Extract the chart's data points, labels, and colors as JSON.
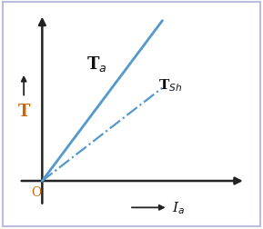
{
  "background_color": "#ffffff",
  "border_color": "#bbbbdd",
  "line_color": "#5599cc",
  "axis_color": "#222222",
  "label_color": "#111111",
  "orange_color": "#cc6600",
  "Ta_label": "T$_a$",
  "TSh_label": "T$_{Sh}$",
  "x_label": "I$_a$",
  "y_label": "T",
  "origin_label": "O",
  "Ta_slope": 1.55,
  "TSh_slope": 0.9,
  "fig_width": 2.89,
  "fig_height": 2.53,
  "dpi": 100
}
